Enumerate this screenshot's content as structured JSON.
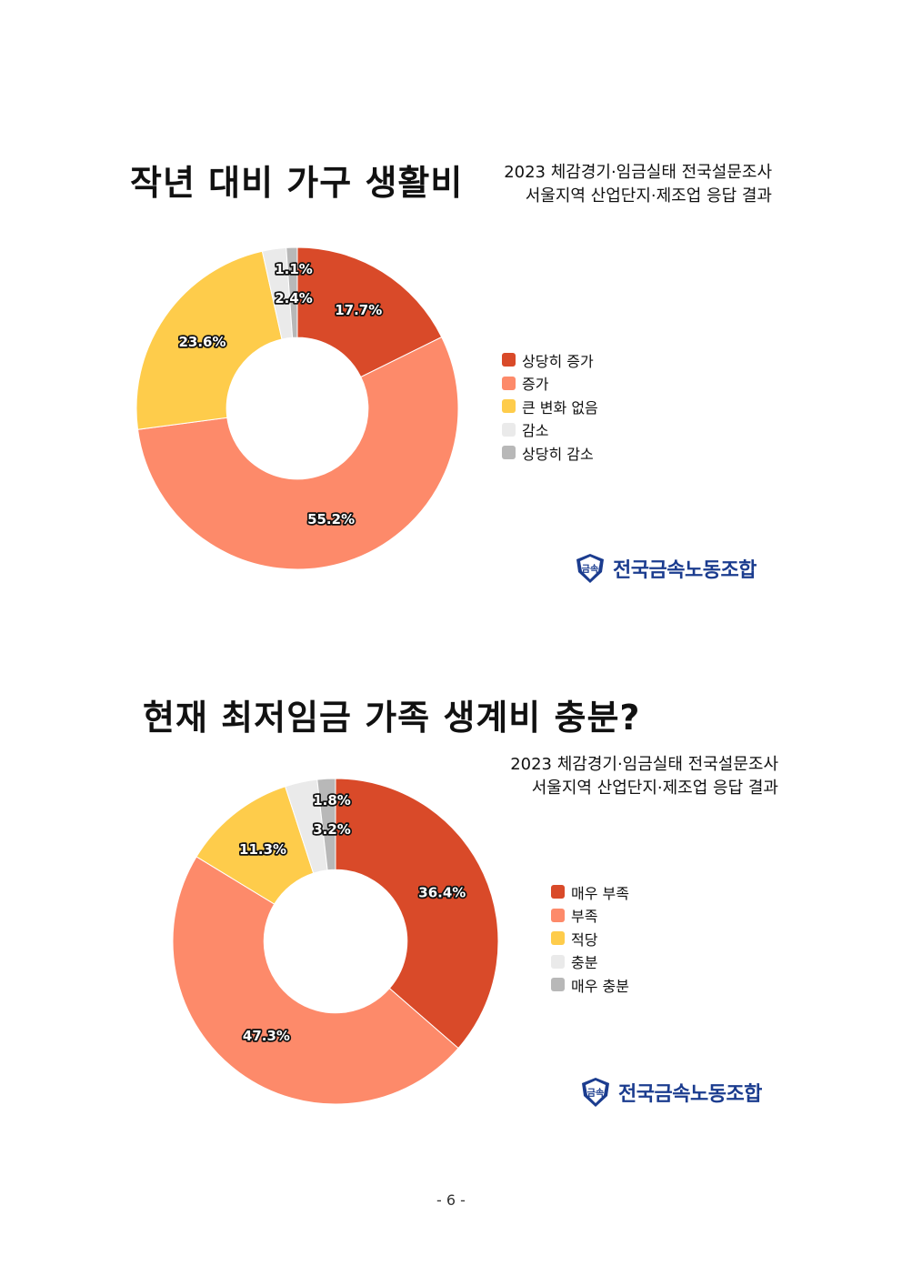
{
  "colors": [
    "#d94a29",
    "#fd8a6a",
    "#fecc4b",
    "#eaeaea",
    "#b8b8b8"
  ],
  "charts": [
    {
      "title": "작년 대비 가구 생활비",
      "subtitle_lines": [
        "2023 체감경기·임금실태 전국설문조사",
        "서울지역 산업단지·제조업 응답 결과"
      ],
      "logo_text": "전국금속노동조합",
      "logo_emblem": "금속"
    },
    {
      "title": "현재 최저임금 가족 생계비 충분?",
      "subtitle_lines": [
        "2023 체감경기·임금실태 전국설문조사",
        "서울지역 산업단지·제조업 응답 결과"
      ],
      "logo_text": "전국금속노동조합",
      "logo_emblem": "금속"
    }
  ],
  "chart_data": [
    {
      "type": "pie",
      "title": "작년 대비 가구 생활비",
      "categories": [
        "상당히 증가",
        "증가",
        "큰 변화 없음",
        "감소",
        "상당히 감소"
      ],
      "values": [
        17.7,
        55.2,
        23.6,
        2.4,
        1.1
      ],
      "labels": [
        "17.7%",
        "55.2%",
        "23.6%",
        "2.4%",
        "1.1%"
      ],
      "donut": true,
      "legend": "right"
    },
    {
      "type": "pie",
      "title": "현재 최저임금 가족 생계비 충분?",
      "categories": [
        "매우 부족",
        "부족",
        "적당",
        "충분",
        "매우 충분"
      ],
      "values": [
        36.4,
        47.3,
        11.3,
        3.2,
        1.8
      ],
      "labels": [
        "36.4%",
        "47.3%",
        "11.3%",
        "3.2%",
        "1.8%"
      ],
      "donut": true,
      "legend": "right"
    }
  ],
  "page_number": "- 6 -"
}
